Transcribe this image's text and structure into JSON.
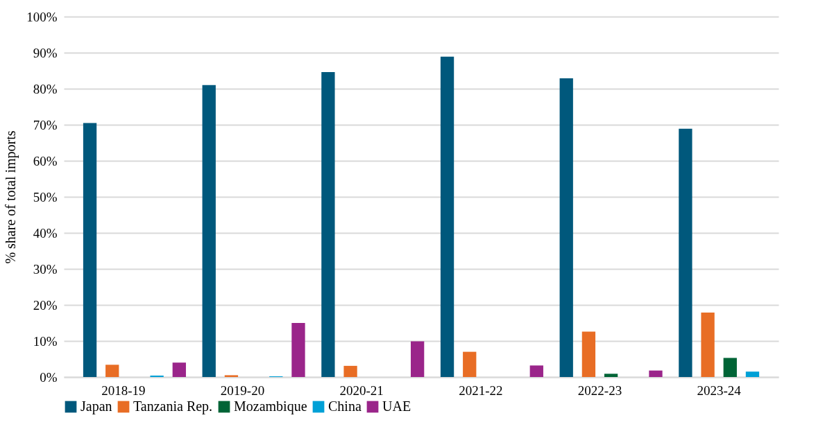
{
  "chart_data": {
    "type": "bar",
    "ylabel": "% share of total imports",
    "categories": [
      "2018-19",
      "2019-20",
      "2020-21",
      "2021-22",
      "2022-23",
      "2023-24"
    ],
    "series": [
      {
        "name": "Japan",
        "color": "#00587c",
        "values": [
          70.5,
          81,
          84.6,
          88.9,
          82.9,
          68.9
        ]
      },
      {
        "name": "Tanzania Rep.",
        "color": "#e86d25",
        "values": [
          3.4,
          0.5,
          3.1,
          7,
          12.6,
          17.9
        ]
      },
      {
        "name": "Mozambique",
        "color": "#006436",
        "values": [
          null,
          null,
          null,
          null,
          0.9,
          5.3
        ]
      },
      {
        "name": "China",
        "color": "#00a0d6",
        "values": [
          0.4,
          0.2,
          null,
          null,
          null,
          1.5
        ]
      },
      {
        "name": "UAE",
        "color": "#9a258a",
        "values": [
          4,
          15,
          9.9,
          3.2,
          1.8,
          null
        ]
      }
    ],
    "ylim": [
      0,
      100
    ],
    "yticks": [
      {
        "value": 0,
        "label": "0%"
      },
      {
        "value": 10,
        "label": "10%"
      },
      {
        "value": 20,
        "label": "20%"
      },
      {
        "value": 30,
        "label": "30%"
      },
      {
        "value": 40,
        "label": "40%"
      },
      {
        "value": 50,
        "label": "50%"
      },
      {
        "value": 60,
        "label": "60%"
      },
      {
        "value": 70,
        "label": "70%"
      },
      {
        "value": 80,
        "label": "80%"
      },
      {
        "value": 90,
        "label": "90%"
      },
      {
        "value": 100,
        "label": "100%"
      }
    ],
    "grid": "y",
    "legend": "bottom"
  }
}
